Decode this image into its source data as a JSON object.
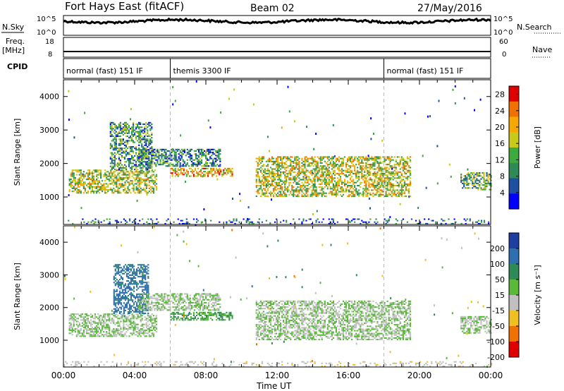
{
  "header": {
    "station": "Fort Hays East (fitACF)",
    "beam": "Beam 02",
    "date": "27/May/2016"
  },
  "strips": {
    "nsky_label": "N.Sky",
    "nsky_ticks": [
      "10^5",
      "10^0"
    ],
    "nsearch_label": "N.Search",
    "nsearch_ticks": [
      "10^5",
      "10^0"
    ],
    "freq_label_1": "Freq.",
    "freq_label_2": "[MHz]",
    "freq_ticks": [
      "18",
      "8"
    ],
    "nave_label": "Nave",
    "nave_ticks": [
      "60",
      "0"
    ],
    "cpid_label": "CPID",
    "cpid_segments": [
      {
        "label": "normal (fast) 151 IF",
        "start_h": 0,
        "end_h": 6
      },
      {
        "label": "themis 3300 IF",
        "start_h": 6,
        "end_h": 18
      },
      {
        "label": "normal (fast) 151 IF",
        "start_h": 18,
        "end_h": 24
      }
    ]
  },
  "chart_data": [
    {
      "type": "heatmap",
      "panel": "power",
      "ylabel": "Slant Range [km]",
      "xlabel": "Time UT",
      "x_ticks": [
        "00:00",
        "04:00",
        "08:00",
        "12:00",
        "16:00",
        "20:00",
        "00:00"
      ],
      "xlim_hours": [
        0,
        24
      ],
      "y_ticks": [
        1000,
        2000,
        3000,
        4000
      ],
      "ylim": [
        180,
        4500
      ],
      "colorbar": {
        "label": "Power [dB]",
        "ticks": [
          "4",
          "8",
          "12",
          "16",
          "20",
          "24",
          "28"
        ],
        "range": [
          0,
          30
        ],
        "colors": [
          "#0000ff",
          "#1e4fa0",
          "#2e8b57",
          "#3daa3d",
          "#c9c91a",
          "#f5a800",
          "#f07000",
          "#e00000"
        ]
      },
      "echo_regions": [
        {
          "t_start": 0.3,
          "t_end": 5.2,
          "range_start": 1100,
          "range_end": 1800,
          "power_db": 16
        },
        {
          "t_start": 2.6,
          "t_end": 5.0,
          "range_start": 1800,
          "range_end": 3200,
          "power_db": 10
        },
        {
          "t_start": 4.2,
          "t_end": 8.8,
          "range_start": 1900,
          "range_end": 2400,
          "power_db": 9
        },
        {
          "t_start": 6.0,
          "t_end": 9.5,
          "range_start": 1600,
          "range_end": 1850,
          "power_db": 20
        },
        {
          "t_start": 10.8,
          "t_end": 19.5,
          "range_start": 1000,
          "range_end": 2200,
          "power_db": 17
        },
        {
          "t_start": 22.3,
          "t_end": 24.0,
          "range_start": 1200,
          "range_end": 1700,
          "power_db": 12
        },
        {
          "t_start": 0.0,
          "t_end": 24.0,
          "range_start": 180,
          "range_end": 350,
          "power_db": 6
        }
      ]
    },
    {
      "type": "heatmap",
      "panel": "velocity",
      "ylabel": "Slant Range [km]",
      "xlabel": "Time UT",
      "x_ticks": [
        "00:00",
        "04:00",
        "08:00",
        "12:00",
        "16:00",
        "20:00",
        "00:00"
      ],
      "xlim_hours": [
        0,
        24
      ],
      "y_ticks": [
        1000,
        2000,
        3000,
        4000
      ],
      "ylim": [
        180,
        4500
      ],
      "colorbar": {
        "label": "Velocity [m s⁻¹]",
        "ticks": [
          "200",
          "100",
          "50",
          "15",
          "-15",
          "-50",
          "-100",
          "-200"
        ],
        "range": [
          -250,
          250
        ],
        "colors": [
          "#1e3fa0",
          "#2f6fb0",
          "#2e8b57",
          "#5ab83a",
          "#c0c0c0",
          "#f0c020",
          "#f07000",
          "#e00000"
        ]
      },
      "echo_regions": [
        {
          "t_start": 0.3,
          "t_end": 5.2,
          "range_start": 1100,
          "range_end": 1800,
          "velocity": 0
        },
        {
          "t_start": 2.8,
          "t_end": 4.8,
          "range_start": 1800,
          "range_end": 3300,
          "velocity": 150
        },
        {
          "t_start": 4.2,
          "t_end": 8.8,
          "range_start": 1900,
          "range_end": 2400,
          "velocity": 0
        },
        {
          "t_start": 6.0,
          "t_end": 9.5,
          "range_start": 1600,
          "range_end": 1850,
          "velocity": 60
        },
        {
          "t_start": 10.8,
          "t_end": 19.5,
          "range_start": 1000,
          "range_end": 2200,
          "velocity": 0
        },
        {
          "t_start": 22.3,
          "t_end": 24.0,
          "range_start": 1200,
          "range_end": 1700,
          "velocity": 0
        },
        {
          "t_start": 0.0,
          "t_end": 24.0,
          "range_start": 180,
          "range_end": 350,
          "velocity": -40
        }
      ]
    }
  ]
}
